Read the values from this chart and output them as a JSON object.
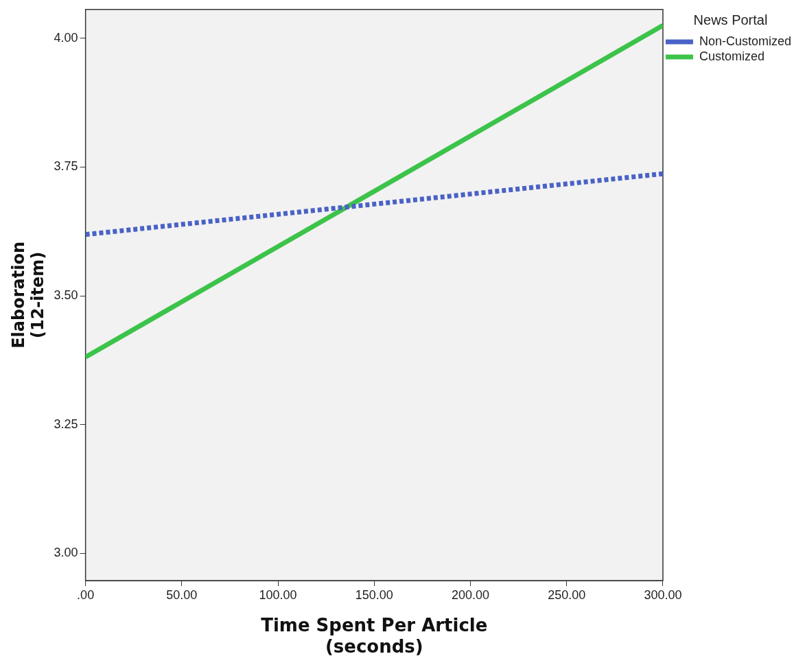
{
  "chart_data": {
    "type": "line",
    "xlabel": "Time Spent Per Article\n(seconds)",
    "ylabel": "Elaboration\n(12-item)",
    "legend_title": "News Portal",
    "legend": "top right",
    "grid": false,
    "marker": "none",
    "x": [
      0,
      300
    ],
    "series": [
      {
        "name": "Non-Customized",
        "color": "#4a62c6",
        "values": [
          3.619,
          3.737
        ],
        "line_style": "dotted"
      },
      {
        "name": "Customized",
        "color": "#3cc34a",
        "values": [
          3.381,
          4.025
        ],
        "line_style": "solid"
      }
    ],
    "xlim": [
      0,
      300
    ],
    "xticks": [
      {
        "value": 0,
        "label": ".00"
      },
      {
        "value": 50,
        "label": "50.00"
      },
      {
        "value": 100,
        "label": "100.00"
      },
      {
        "value": 150,
        "label": "150.00"
      },
      {
        "value": 200,
        "label": "200.00"
      },
      {
        "value": 250,
        "label": "250.00"
      },
      {
        "value": 300,
        "label": "300.00"
      }
    ],
    "ylim": [
      2.947,
      4.056
    ],
    "yticks": [
      {
        "value": 3,
        "label": "3.00"
      },
      {
        "value": 3.25,
        "label": "3.25"
      },
      {
        "value": 3.5,
        "label": "3.50"
      },
      {
        "value": 3.75,
        "label": "3.75"
      },
      {
        "value": 4,
        "label": "4.00"
      }
    ]
  }
}
